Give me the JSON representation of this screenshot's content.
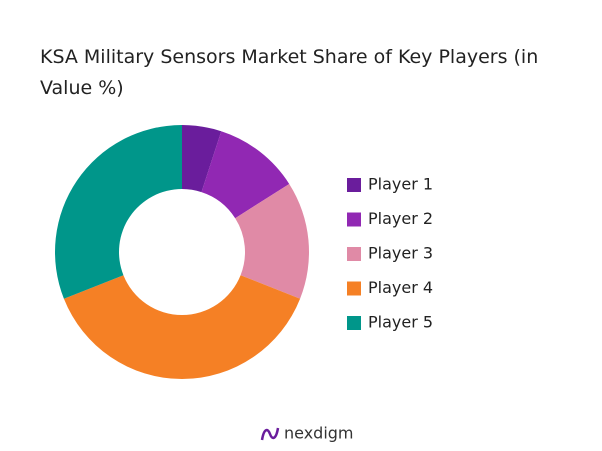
{
  "chart_data": {
    "type": "donut",
    "title": "KSA Military Sensors Market Share of Key Players (in Value %)",
    "categories": [
      "Player 1",
      "Player 2",
      "Player 3",
      "Player 4",
      "Player 5"
    ],
    "values": [
      5,
      11,
      15,
      38,
      31
    ],
    "colors": [
      "#6a1d9c",
      "#9128b3",
      "#e08aa6",
      "#f58025",
      "#00968a"
    ],
    "legend": "right"
  },
  "brand": "nexdigm"
}
